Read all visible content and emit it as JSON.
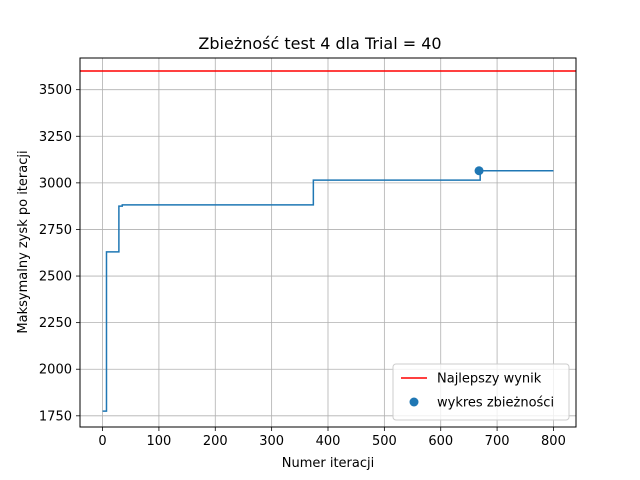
{
  "chart_data": {
    "type": "line",
    "title": "Zbieżność test 4 dla Trial = 40",
    "xlabel": "Numer iteracji",
    "ylabel": "Maksymalny zysk po iteracji",
    "xlim": [
      -40,
      840
    ],
    "ylim": [
      1690,
      3670
    ],
    "xticks": [
      0,
      100,
      200,
      300,
      400,
      500,
      600,
      700,
      800
    ],
    "yticks": [
      1750,
      2000,
      2250,
      2500,
      2750,
      3000,
      3250,
      3500
    ],
    "grid": true,
    "legend_position": "bottom-right",
    "series": [
      {
        "name": "Najlepszy wynik",
        "kind": "hline",
        "color": "#ff0000",
        "y": 3600
      },
      {
        "name": "",
        "kind": "step",
        "color": "#1f77b4",
        "points": [
          [
            0,
            1775
          ],
          [
            7,
            1775
          ],
          [
            7,
            2630
          ],
          [
            29,
            2630
          ],
          [
            29,
            2875
          ],
          [
            35,
            2875
          ],
          [
            35,
            2882
          ],
          [
            374,
            2882
          ],
          [
            374,
            3015
          ],
          [
            670,
            3015
          ],
          [
            670,
            3065
          ],
          [
            800,
            3065
          ]
        ]
      },
      {
        "name": "wykres zbieżności",
        "kind": "scatter",
        "color": "#1f77b4",
        "points": [
          [
            668,
            3065
          ]
        ]
      }
    ]
  }
}
